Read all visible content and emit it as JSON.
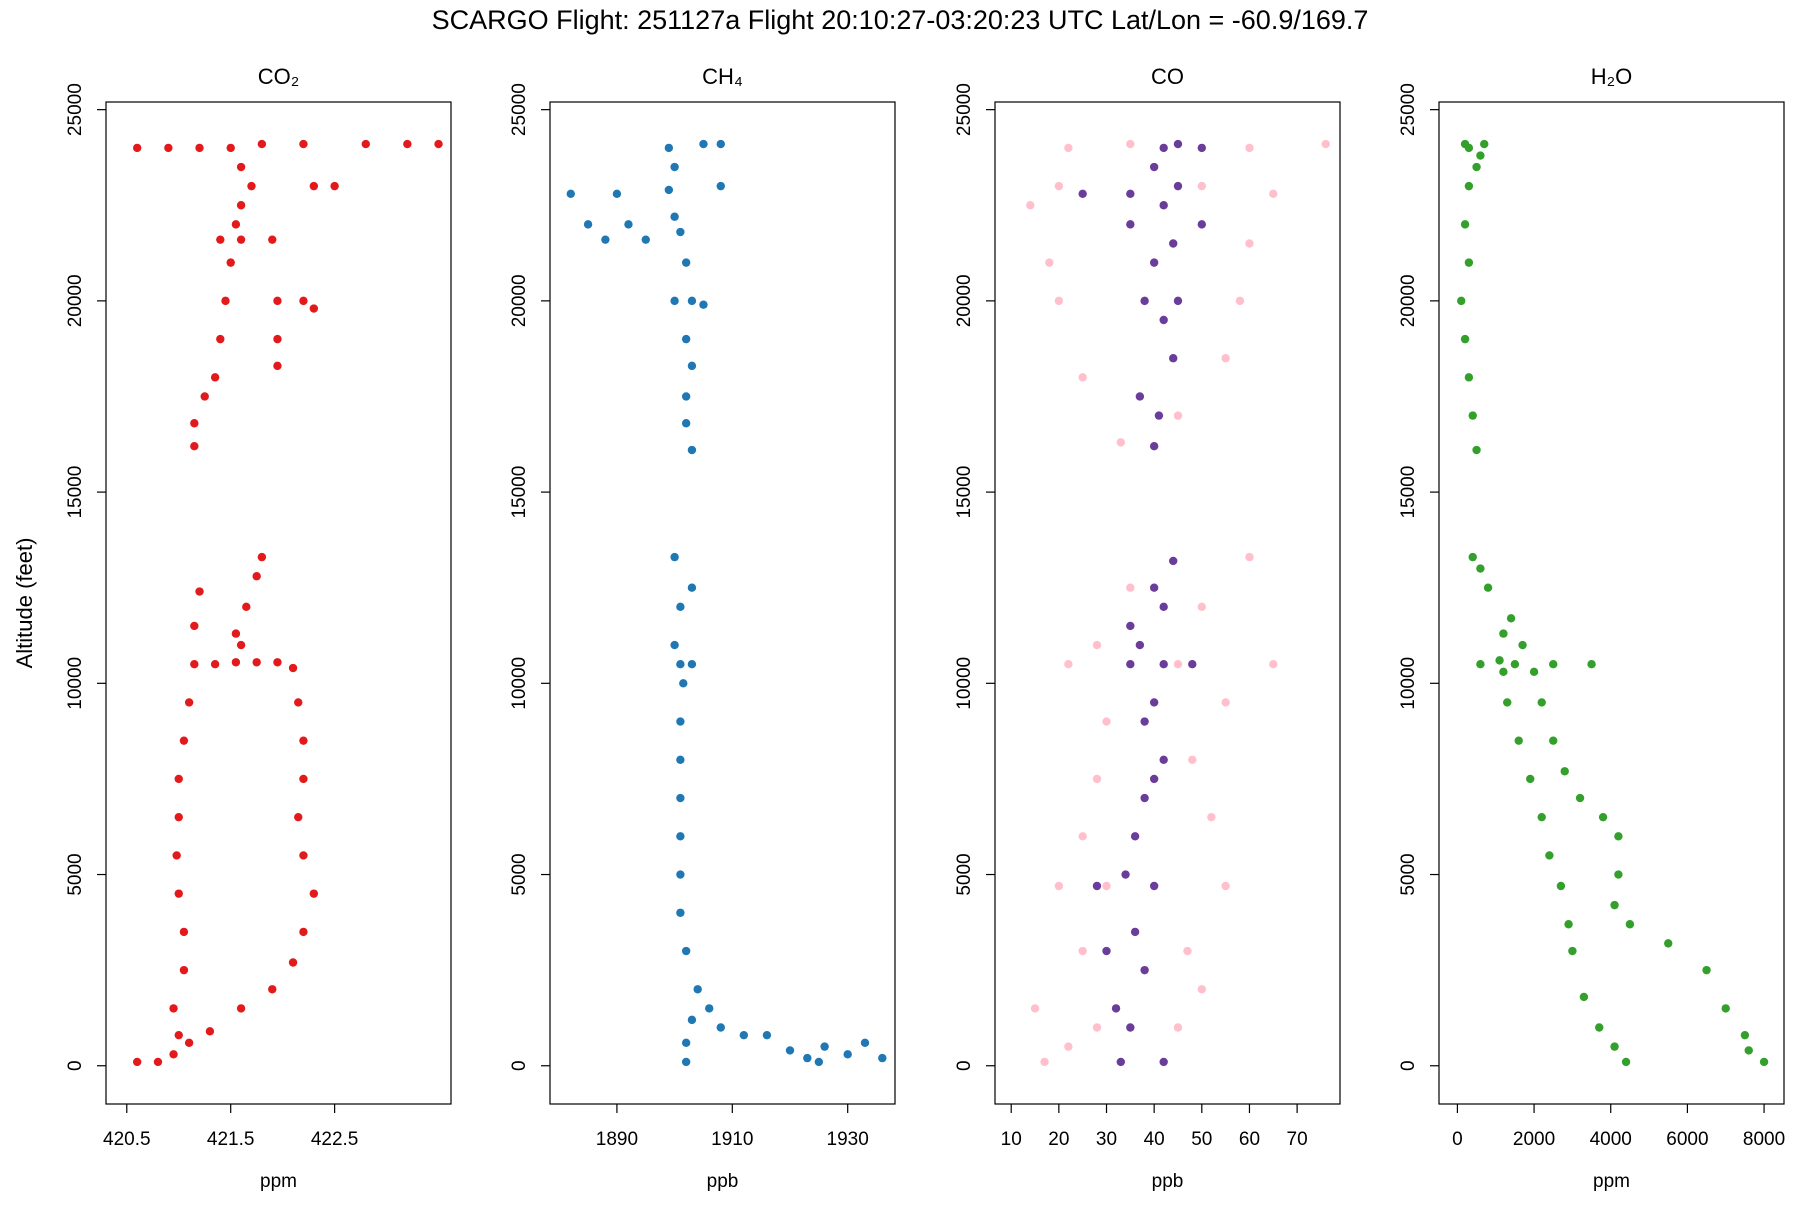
{
  "title": "SCARGO Flight: 251127a  Flight  20:10:27-03:20:23 UTC  Lat/Lon = -60.9/169.7",
  "chart_data": [
    {
      "type": "scatter",
      "title": "CO₂",
      "xlabel": "ppm",
      "ylabel": "Altitude (feet)",
      "xlim": [
        420.3,
        423.62
      ],
      "ylim": [
        -1000,
        25200
      ],
      "xticks": [
        420.5,
        421.5,
        422.5
      ],
      "yticks": [
        0,
        5000,
        10000,
        15000,
        20000,
        25000
      ],
      "series": [
        {
          "color": "#e31a1c",
          "x": [
            420.6,
            420.8,
            420.95,
            421.0,
            420.95,
            421.05,
            421.05,
            421.0,
            420.98,
            421.0,
            421.0,
            421.05,
            421.1,
            421.15,
            421.15,
            421.2,
            421.1,
            421.3,
            421.6,
            421.9,
            422.1,
            422.2,
            422.3,
            422.2,
            422.15,
            422.2,
            422.2,
            422.15,
            422.1,
            421.35,
            421.55,
            421.75,
            421.95,
            421.6,
            421.55,
            421.65,
            421.75,
            421.8,
            421.15,
            421.15,
            421.25,
            421.35,
            421.4,
            421.45,
            421.5,
            421.4,
            421.6,
            421.9,
            421.95,
            422.2,
            422.3,
            421.95,
            421.95,
            421.55,
            421.6,
            421.7,
            422.3,
            422.5,
            421.6,
            421.5,
            420.6,
            420.9,
            421.2,
            421.8,
            422.2,
            422.8,
            423.2,
            423.5
          ],
          "y": [
            100,
            100,
            300,
            800,
            1500,
            2500,
            3500,
            4500,
            5500,
            6500,
            7500,
            8500,
            9500,
            10500,
            11500,
            12400,
            600,
            900,
            1500,
            2000,
            2700,
            3500,
            4500,
            5500,
            6500,
            7500,
            8500,
            9500,
            10400,
            10500,
            10550,
            10550,
            10550,
            11000,
            11300,
            12000,
            12800,
            13300,
            16200,
            16800,
            17500,
            18000,
            19000,
            20000,
            21000,
            21600,
            21600,
            21600,
            20000,
            20000,
            19800,
            19000,
            18300,
            22000,
            22500,
            23000,
            23000,
            23000,
            23500,
            24000,
            24000,
            24000,
            24000,
            24100,
            24100,
            24100,
            24100,
            24100
          ]
        }
      ]
    },
    {
      "type": "scatter",
      "title": "CH₄",
      "xlabel": "ppb",
      "xlim": [
        1878.4,
        1938.2
      ],
      "ylim": [
        -1000,
        25200
      ],
      "xticks": [
        1890,
        1910,
        1930
      ],
      "yticks": [
        0,
        5000,
        10000,
        15000,
        20000,
        25000
      ],
      "series": [
        {
          "color": "#1f78b4",
          "x": [
            1902,
            1902,
            1903,
            1904,
            1906,
            1908,
            1912,
            1916,
            1920,
            1923,
            1926,
            1930,
            1933,
            1936,
            1925,
            1902,
            1901,
            1901,
            1901,
            1901,
            1901,
            1901,
            1901.5,
            1901,
            1903,
            1900,
            1901,
            1900,
            1903,
            1903,
            1902,
            1902,
            1903,
            1902,
            1903,
            1905,
            1900,
            1902,
            1901,
            1895,
            1888,
            1885,
            1892,
            1900,
            1882,
            1890,
            1899,
            1908,
            1900,
            1899,
            1905,
            1908
          ],
          "y": [
            100,
            600,
            1200,
            2000,
            1500,
            1000,
            800,
            800,
            400,
            200,
            500,
            300,
            600,
            200,
            100,
            3000,
            4000,
            5000,
            6000,
            7000,
            8000,
            9000,
            10000,
            10500,
            10500,
            11000,
            12000,
            13300,
            12500,
            16100,
            16800,
            17500,
            18300,
            19000,
            20000,
            19900,
            20000,
            21000,
            21800,
            21600,
            21600,
            22000,
            22000,
            22200,
            22800,
            22800,
            22900,
            23000,
            23500,
            24000,
            24100,
            24100
          ]
        }
      ]
    },
    {
      "type": "scatter",
      "title": "CO",
      "xlabel": "ppb",
      "xlim": [
        6.6,
        79
      ],
      "ylim": [
        -1000,
        25200
      ],
      "xticks": [
        10,
        20,
        30,
        40,
        50,
        60,
        70
      ],
      "yticks": [
        0,
        5000,
        10000,
        15000,
        20000,
        25000
      ],
      "series": [
        {
          "color": "#ffc0cb",
          "x": [
            17,
            22,
            28,
            45,
            15,
            50,
            25,
            47,
            20,
            55,
            30,
            25,
            52,
            28,
            48,
            30,
            55,
            22,
            65,
            45,
            28,
            50,
            35,
            60,
            33,
            45,
            25,
            55,
            20,
            58,
            18,
            60,
            14,
            65,
            20,
            50,
            22,
            76,
            60,
            35
          ],
          "y": [
            100,
            500,
            1000,
            1000,
            1500,
            2000,
            3000,
            3000,
            4700,
            4700,
            4700,
            6000,
            6500,
            7500,
            8000,
            9000,
            9500,
            10500,
            10500,
            10500,
            11000,
            12000,
            12500,
            13300,
            16300,
            17000,
            18000,
            18500,
            20000,
            20000,
            21000,
            21500,
            22500,
            22800,
            23000,
            23000,
            24000,
            24100,
            24000,
            24100
          ]
        },
        {
          "color": "#6a3d9a",
          "x": [
            33,
            42,
            35,
            32,
            38,
            30,
            36,
            28,
            40,
            34,
            36,
            38,
            40,
            42,
            38,
            40,
            42,
            35,
            48,
            37,
            35,
            42,
            40,
            44,
            40,
            41,
            37,
            44,
            42,
            38,
            45,
            40,
            44,
            35,
            50,
            42,
            25,
            35,
            45,
            40,
            42,
            50,
            45
          ],
          "y": [
            100,
            100,
            1000,
            1500,
            2500,
            3000,
            3500,
            4700,
            4700,
            5000,
            6000,
            7000,
            7500,
            8000,
            9000,
            9500,
            10500,
            10500,
            10500,
            11000,
            11500,
            12000,
            12500,
            13200,
            16200,
            17000,
            17500,
            18500,
            19500,
            20000,
            20000,
            21000,
            21500,
            22000,
            22000,
            22500,
            22800,
            22800,
            23000,
            23500,
            24000,
            24000,
            24100
          ]
        }
      ]
    },
    {
      "type": "scatter",
      "title": "H₂O",
      "xlabel": "ppm",
      "xlim": [
        -480,
        8520
      ],
      "ylim": [
        -1000,
        25200
      ],
      "xticks": [
        0,
        2000,
        4000,
        6000,
        8000
      ],
      "yticks": [
        0,
        5000,
        10000,
        15000,
        20000,
        25000
      ],
      "series": [
        {
          "color": "#33a02c",
          "x": [
            4400,
            4100,
            3700,
            3300,
            3000,
            2900,
            2700,
            2400,
            2200,
            1900,
            1600,
            1300,
            1200,
            8000,
            7600,
            7500,
            7000,
            6500,
            5500,
            4500,
            4100,
            4200,
            4200,
            3800,
            3200,
            2800,
            2500,
            2200,
            2000,
            1700,
            1200,
            1400,
            800,
            600,
            400,
            600,
            1500,
            2500,
            3500,
            1100,
            500,
            400,
            300,
            200,
            100,
            300,
            200,
            300,
            500,
            300,
            700,
            600,
            200
          ],
          "y": [
            100,
            500,
            1000,
            1800,
            3000,
            3700,
            4700,
            5500,
            6500,
            7500,
            8500,
            9500,
            10300,
            100,
            400,
            800,
            1500,
            2500,
            3200,
            3700,
            4200,
            5000,
            6000,
            6500,
            7000,
            7700,
            8500,
            9500,
            10300,
            11000,
            11300,
            11700,
            12500,
            13000,
            13300,
            10500,
            10500,
            10500,
            10500,
            10600,
            16100,
            17000,
            18000,
            19000,
            20000,
            21000,
            22000,
            23000,
            23500,
            24000,
            24100,
            23800,
            24100
          ]
        }
      ]
    }
  ]
}
